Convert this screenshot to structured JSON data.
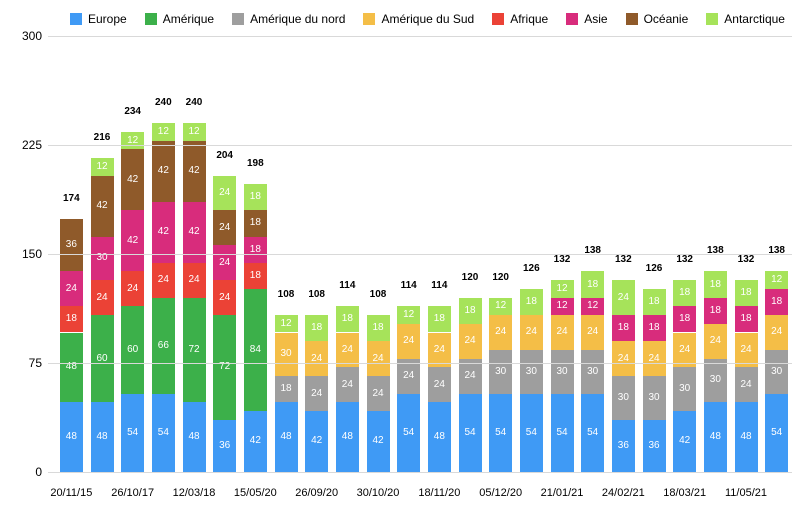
{
  "chart": {
    "type": "stacked-bar",
    "background_color": "#ffffff",
    "grid_color": "#d9d9d9",
    "axis_label_color": "#000000",
    "label_fontsize": 12,
    "value_label_fontsize": 10,
    "total_label_fontsize": 10,
    "ylim": [
      0,
      300
    ],
    "yticks": [
      0,
      75,
      150,
      225,
      300
    ],
    "bar_gap_ratio": 0.25,
    "series": [
      {
        "key": "europe",
        "label": "Europe",
        "color": "#3f9af5"
      },
      {
        "key": "amerique",
        "label": "Amérique",
        "color": "#3cb04a"
      },
      {
        "key": "amerique_nord",
        "label": "Amérique du nord",
        "color": "#9e9e9e"
      },
      {
        "key": "amerique_sud",
        "label": "Amérique du Sud",
        "color": "#f4be47"
      },
      {
        "key": "afrique",
        "label": "Afrique",
        "color": "#eb4236"
      },
      {
        "key": "asie",
        "label": "Asie",
        "color": "#d82c7c"
      },
      {
        "key": "oceanie",
        "label": "Océanie",
        "color": "#8f5a2a"
      },
      {
        "key": "antarctique",
        "label": "Antarctique",
        "color": "#a6e35a"
      }
    ],
    "bars": [
      {
        "x": "20/11/15",
        "total": 174,
        "v": {
          "europe": 48,
          "amerique": 48,
          "afrique": 18,
          "asie": 24,
          "oceanie": 36
        }
      },
      {
        "x": "",
        "total": 216,
        "v": {
          "europe": 48,
          "amerique": 60,
          "afrique": 24,
          "asie": 30,
          "oceanie": 42,
          "antarctique": 12
        }
      },
      {
        "x": "26/10/17",
        "total": 234,
        "v": {
          "europe": 54,
          "amerique": 60,
          "afrique": 24,
          "asie": 42,
          "oceanie": 42,
          "antarctique": 12
        }
      },
      {
        "x": "",
        "total": 240,
        "v": {
          "europe": 54,
          "amerique": 66,
          "afrique": 24,
          "asie": 42,
          "oceanie": 42,
          "antarctique": 12
        }
      },
      {
        "x": "12/03/18",
        "total": 240,
        "v": {
          "europe": 48,
          "amerique": 72,
          "afrique": 24,
          "asie": 42,
          "oceanie": 42,
          "antarctique": 12
        }
      },
      {
        "x": "",
        "total": 204,
        "v": {
          "europe": 36,
          "amerique": 72,
          "afrique": 24,
          "asie": 24,
          "oceanie": 24,
          "antarctique": 24
        }
      },
      {
        "x": "15/05/20",
        "total": 198,
        "v": {
          "europe": 42,
          "amerique": 84,
          "afrique": 18,
          "asie": 18,
          "oceanie": 18,
          "antarctique": 18
        }
      },
      {
        "x": "",
        "total": 108,
        "v": {
          "europe": 48,
          "amerique_nord": 18,
          "amerique_sud": 30,
          "antarctique": 12
        }
      },
      {
        "x": "26/09/20",
        "total": 108,
        "v": {
          "europe": 42,
          "amerique_nord": 24,
          "amerique_sud": 24,
          "antarctique": 18
        }
      },
      {
        "x": "",
        "total": 114,
        "v": {
          "europe": 48,
          "amerique_nord": 24,
          "amerique_sud": 24,
          "antarctique": 18
        }
      },
      {
        "x": "30/10/20",
        "total": 108,
        "v": {
          "europe": 42,
          "amerique_nord": 24,
          "amerique_sud": 24,
          "antarctique": 18
        }
      },
      {
        "x": "",
        "total": 114,
        "v": {
          "europe": 54,
          "amerique_nord": 24,
          "amerique_sud": 24,
          "antarctique": 12
        }
      },
      {
        "x": "18/11/20",
        "total": 114,
        "v": {
          "europe": 48,
          "amerique_nord": 24,
          "amerique_sud": 24,
          "antarctique": 18
        }
      },
      {
        "x": "",
        "total": 120,
        "v": {
          "europe": 54,
          "amerique_nord": 24,
          "amerique_sud": 24,
          "antarctique": 18
        }
      },
      {
        "x": "05/12/20",
        "total": 120,
        "v": {
          "europe": 54,
          "amerique_nord": 30,
          "amerique_sud": 24,
          "antarctique": 12
        }
      },
      {
        "x": "",
        "total": 126,
        "v": {
          "europe": 54,
          "amerique_nord": 30,
          "amerique_sud": 24,
          "antarctique": 18
        }
      },
      {
        "x": "21/01/21",
        "total": 132,
        "v": {
          "europe": 54,
          "amerique_nord": 30,
          "amerique_sud": 24,
          "asie": 12,
          "antarctique": 12
        }
      },
      {
        "x": "",
        "total": 138,
        "v": {
          "europe": 54,
          "amerique_nord": 30,
          "amerique_sud": 24,
          "asie": 12,
          "antarctique": 18
        }
      },
      {
        "x": "24/02/21",
        "total": 132,
        "v": {
          "europe": 36,
          "amerique_nord": 30,
          "amerique_sud": 24,
          "asie": 18,
          "antarctique": 24
        }
      },
      {
        "x": "",
        "total": 126,
        "v": {
          "europe": 36,
          "amerique_nord": 30,
          "amerique_sud": 24,
          "asie": 18,
          "antarctique": 18
        }
      },
      {
        "x": "18/03/21",
        "total": 132,
        "v": {
          "europe": 42,
          "amerique_nord": 30,
          "amerique_sud": 24,
          "asie": 18,
          "antarctique": 18
        }
      },
      {
        "x": "",
        "total": 138,
        "v": {
          "europe": 48,
          "amerique_nord": 30,
          "amerique_sud": 24,
          "asie": 18,
          "antarctique": 18
        }
      },
      {
        "x": "11/05/21",
        "total": 132,
        "v": {
          "europe": 48,
          "amerique_nord": 24,
          "amerique_sud": 24,
          "asie": 18,
          "antarctique": 18
        }
      },
      {
        "x": "",
        "total": 138,
        "v": {
          "europe": 54,
          "amerique_nord": 30,
          "amerique_sud": 24,
          "asie": 18,
          "antarctique": 12
        }
      }
    ]
  }
}
